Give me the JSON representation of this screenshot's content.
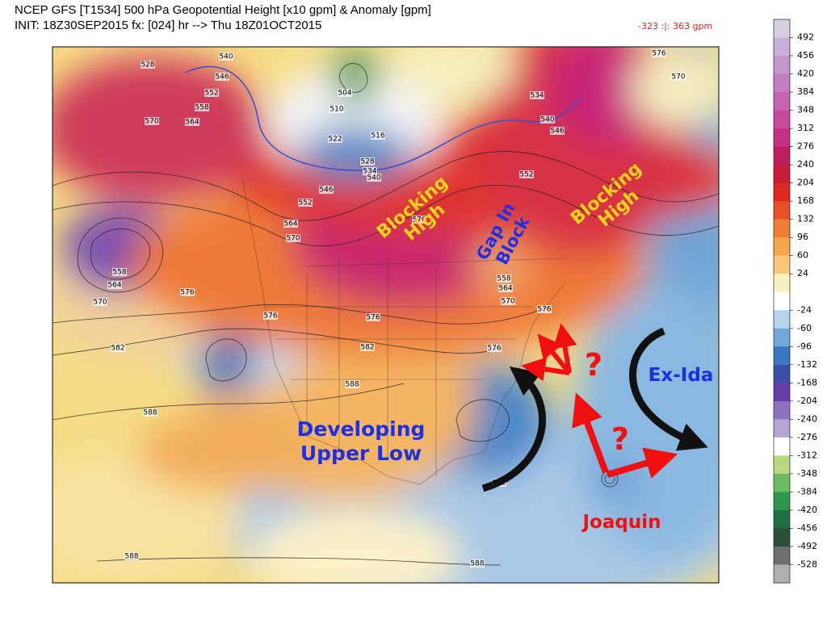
{
  "header": {
    "title": "NCEP GFS [T1534] 500 hPa Geopotential Height [x10 gpm] & Anomaly [gpm]",
    "init": "INIT: 18Z30SEP2015 fx: [024] hr --> Thu 18Z01OCT2015",
    "range": "-323 :|:   363 gpm"
  },
  "colorbar": {
    "ticks": [
      492,
      456,
      420,
      384,
      348,
      312,
      276,
      240,
      204,
      168,
      132,
      96,
      60,
      24,
      -24,
      -60,
      -96,
      -132,
      -168,
      -204,
      -240,
      -276,
      -312,
      -348,
      -384,
      -420,
      -456,
      -492,
      -528
    ]
  },
  "contour_labels": [
    528,
    540,
    546,
    552,
    558,
    564,
    570,
    504,
    510,
    516,
    522,
    528,
    534,
    540,
    546,
    552,
    564,
    570,
    576,
    552,
    576,
    570,
    534,
    540,
    546,
    558,
    564,
    570,
    576,
    582,
    576,
    576,
    582,
    588,
    588,
    576,
    576,
    564,
    570,
    558,
    588,
    588,
    582
  ],
  "annotations": {
    "blocking_high_1": [
      "Blocking",
      "High"
    ],
    "blocking_high_2": [
      "Blocking",
      "High"
    ],
    "gap_in_block": [
      "Gap In",
      "Block"
    ],
    "ex_ida": "Ex-Ida",
    "upper_low": [
      "Developing",
      "Upper Low"
    ],
    "joaquin": "Joaquin",
    "question_1": "?",
    "question_2": "?"
  }
}
